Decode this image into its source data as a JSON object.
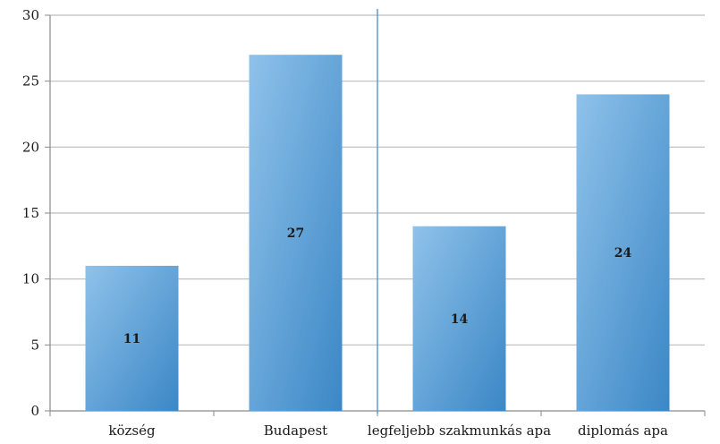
{
  "colors": {
    "bar_light": "#8fc2ea",
    "bar_dark": "#3b87c6",
    "grid": "#bdbdbd",
    "divider": "#5a94c8"
  },
  "chart_data": {
    "type": "bar",
    "categories": [
      "község",
      "Budapest",
      "legfeljebb szakmunkás apa",
      "diplomás apa"
    ],
    "values": [
      11,
      27,
      14,
      24
    ],
    "data_labels": [
      "11",
      "27",
      "14",
      "24"
    ],
    "title": "",
    "xlabel": "",
    "ylabel": "",
    "ylim": [
      0,
      30
    ],
    "yticks": [
      0,
      5,
      10,
      15,
      20,
      25,
      30
    ],
    "grid": true,
    "legend": "none",
    "divider_between": [
      1,
      2
    ]
  }
}
